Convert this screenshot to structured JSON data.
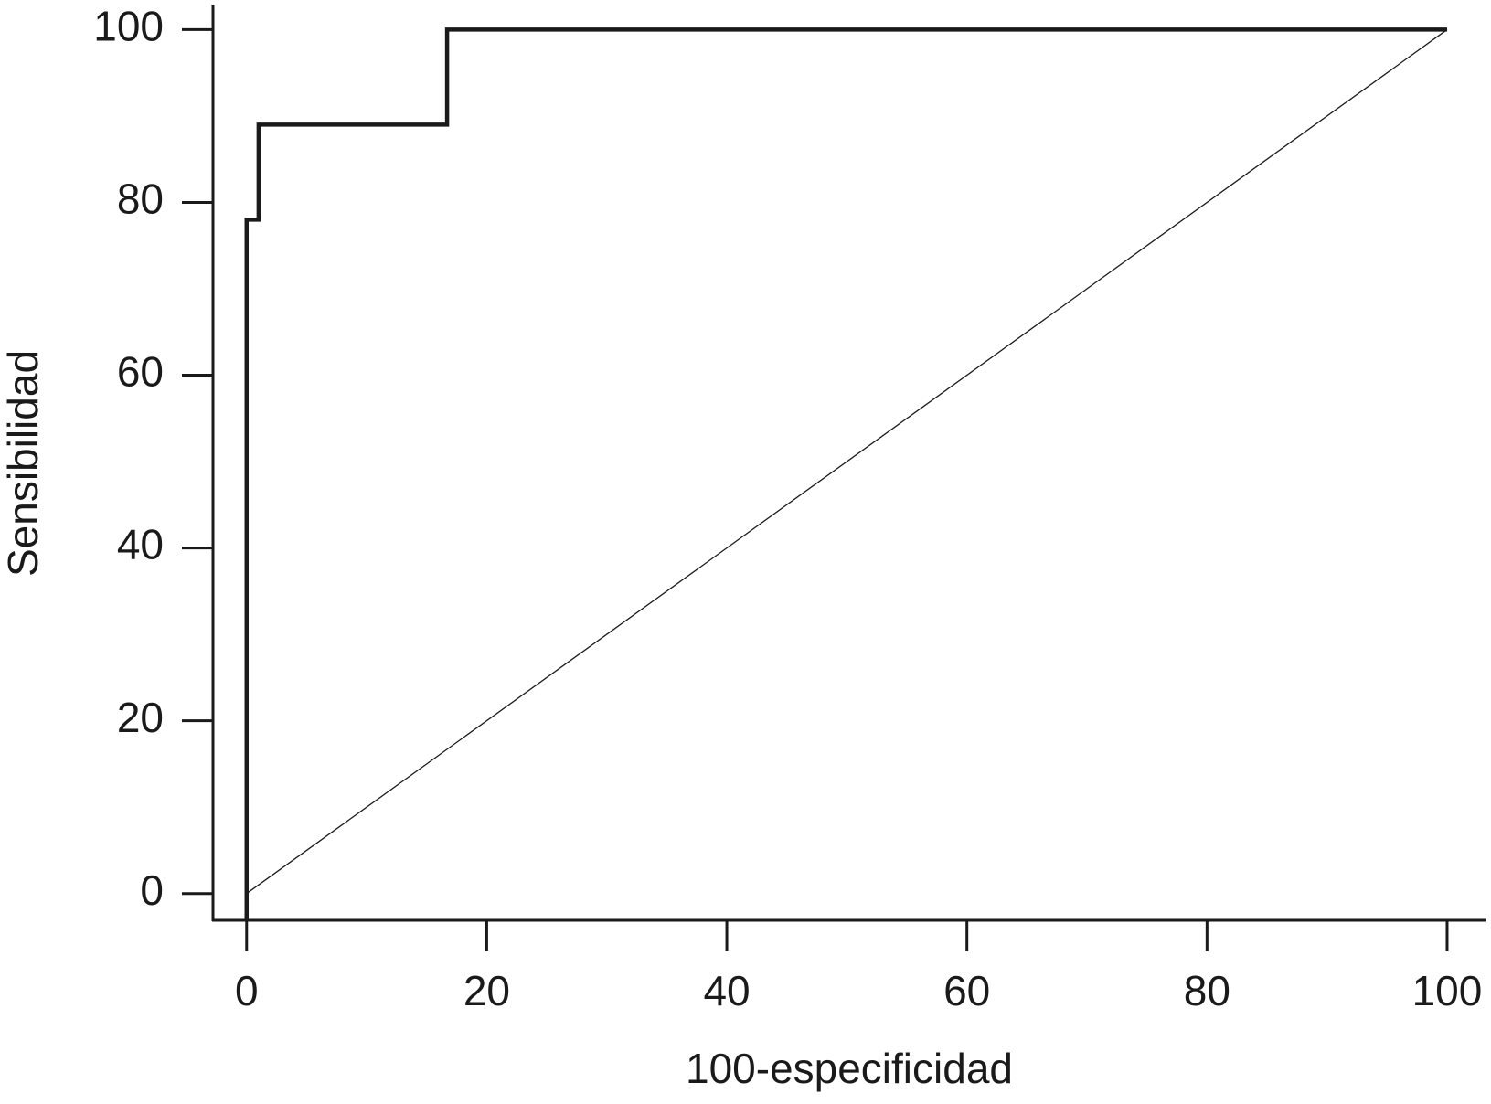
{
  "chart_data": {
    "type": "line",
    "x_label": "100-especificidad",
    "y_label": "Sensibilidad",
    "series": [
      {
        "x": [
          0,
          0,
          1,
          1,
          16.7,
          16.7,
          100
        ],
        "values": [
          -3.1,
          78,
          78,
          89,
          89,
          100,
          100
        ],
        "color": "#1a1a1a"
      },
      {
        "x": [
          0,
          100
        ],
        "values": [
          0,
          100
        ],
        "color": "#1a1a1a"
      }
    ],
    "xlim": [
      -2.8,
      103.2
    ],
    "ylim": [
      -3.1,
      102.9
    ],
    "xticks": [
      0,
      20,
      40,
      60,
      80,
      100
    ],
    "yticks": [
      0,
      20,
      40,
      60,
      80,
      100
    ],
    "grid": false
  }
}
